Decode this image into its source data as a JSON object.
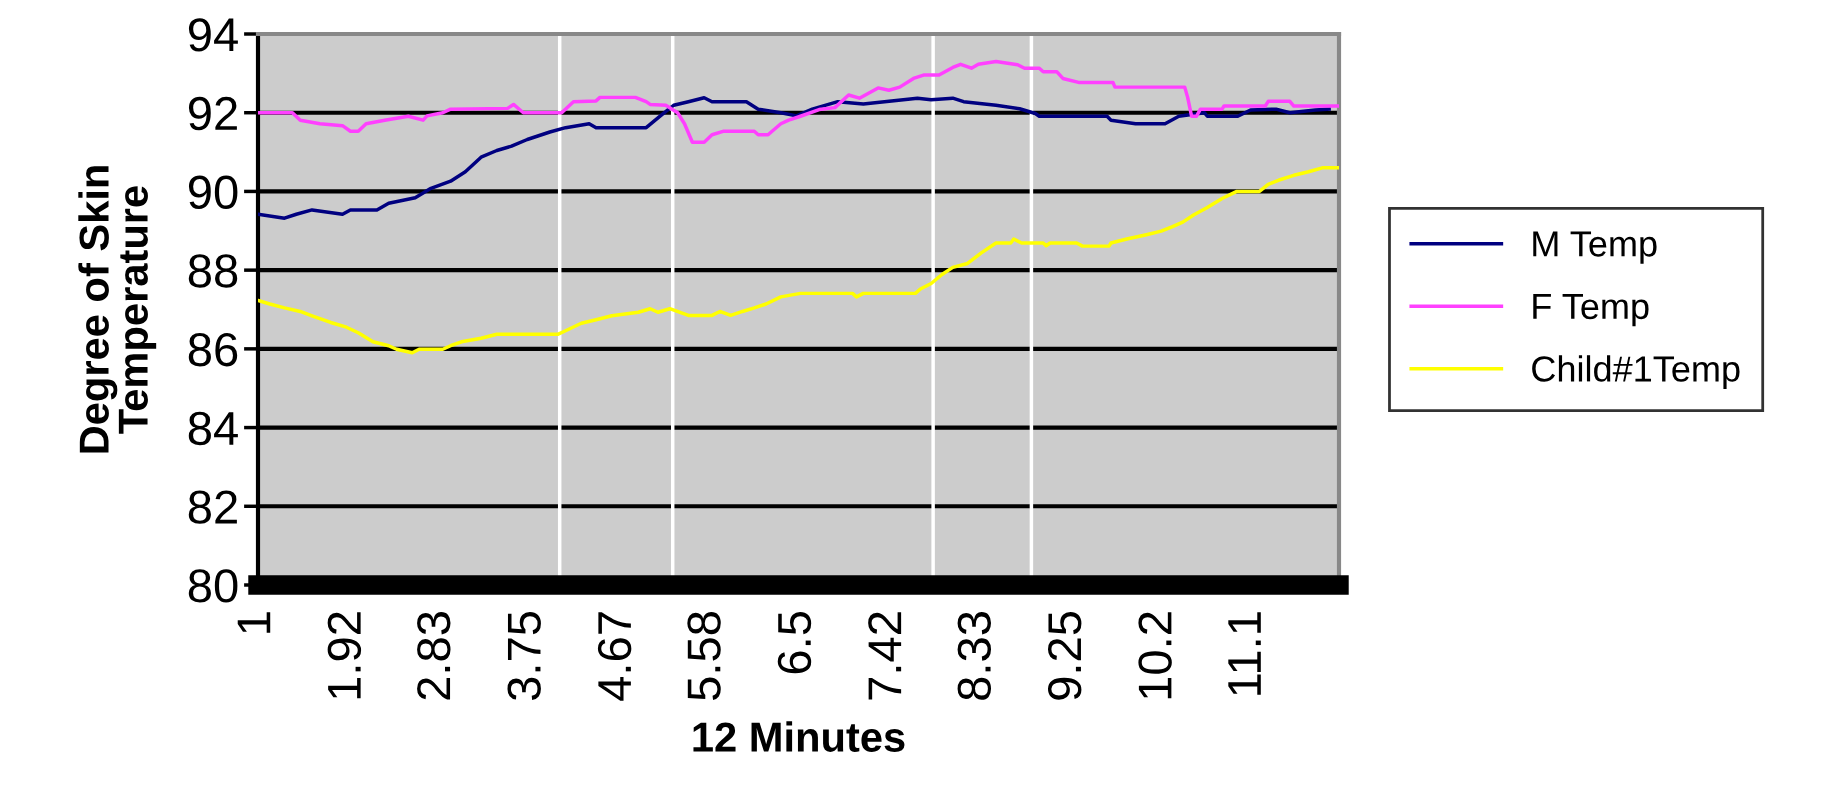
{
  "chart_data": {
    "type": "line",
    "xlabel": "12 Minutes",
    "ylabel": "Degree of Skin\nTemperature",
    "xlim": [
      1,
      12
    ],
    "xticks": [
      1,
      1.92,
      2.83,
      3.75,
      4.67,
      5.58,
      6.5,
      7.42,
      8.33,
      9.25,
      {
        "value": 10.17,
        "label": "10.2"
      },
      {
        "value": 11.08,
        "label": "11.1"
      }
    ],
    "ylim": [
      80,
      94
    ],
    "yticks": [
      80,
      82,
      84,
      86,
      88,
      90,
      92,
      94
    ],
    "grid": "y",
    "legend": "right",
    "marker": "none",
    "line_style": "solid",
    "ref_lines": [
      {
        "axis": "x",
        "value": 4.07,
        "color": "#ffffff"
      },
      {
        "axis": "x",
        "value": 5.22,
        "color": "#ffffff"
      },
      {
        "axis": "x",
        "value": 7.87,
        "color": "#ffffff"
      },
      {
        "axis": "x",
        "value": 8.87,
        "color": "#ffffff"
      }
    ],
    "series": [
      {
        "name": "M Temp",
        "color": "#000080",
        "x": [
          1.0,
          1.27,
          1.39,
          1.55,
          1.86,
          1.94,
          2.21,
          2.33,
          2.6,
          2.76,
          2.96,
          3.11,
          3.27,
          3.43,
          3.58,
          3.74,
          3.97,
          4.13,
          4.37,
          4.44,
          4.95,
          5.11,
          5.23,
          5.38,
          5.54,
          5.62,
          5.97,
          6.09,
          6.32,
          6.48,
          6.64,
          6.9,
          7.16,
          7.71,
          7.85,
          8.07,
          8.18,
          8.51,
          8.75,
          8.91,
          8.95,
          9.64,
          9.68,
          9.93,
          10.23,
          10.37,
          10.63,
          10.66,
          10.97,
          11.1,
          11.36,
          11.5,
          11.76,
          11.9
        ],
        "values": [
          89.42,
          89.32,
          89.42,
          89.53,
          89.42,
          89.53,
          89.53,
          89.7,
          89.84,
          90.08,
          90.26,
          90.5,
          90.87,
          91.04,
          91.15,
          91.32,
          91.51,
          91.62,
          91.72,
          91.62,
          91.62,
          91.95,
          92.19,
          92.28,
          92.38,
          92.28,
          92.28,
          92.09,
          92.0,
          91.92,
          92.09,
          92.28,
          92.22,
          92.37,
          92.33,
          92.37,
          92.28,
          92.19,
          92.1,
          91.98,
          91.91,
          91.91,
          91.81,
          91.72,
          91.72,
          91.91,
          92.0,
          91.91,
          91.91,
          92.07,
          92.09,
          92.0,
          92.07,
          92.09
        ]
      },
      {
        "name": "F Temp",
        "color": "#ff40ff",
        "x": [
          1.0,
          1.35,
          1.43,
          1.63,
          1.86,
          1.94,
          2.02,
          2.1,
          2.29,
          2.53,
          2.68,
          2.72,
          2.88,
          2.96,
          3.54,
          3.6,
          3.7,
          4.09,
          4.21,
          4.44,
          4.48,
          4.84,
          4.95,
          4.99,
          5.15,
          5.27,
          5.34,
          5.42,
          5.54,
          5.62,
          5.74,
          6.05,
          6.09,
          6.19,
          6.32,
          6.4,
          6.52,
          6.71,
          6.87,
          7.01,
          7.12,
          7.31,
          7.42,
          7.53,
          7.67,
          7.78,
          7.93,
          8.07,
          8.15,
          8.26,
          8.33,
          8.51,
          8.73,
          8.8,
          8.95,
          8.99,
          9.13,
          9.19,
          9.35,
          9.7,
          9.72,
          10.15,
          10.43,
          10.46,
          10.5,
          10.55,
          10.59,
          10.81,
          10.83,
          11.25,
          11.28,
          11.5,
          11.54,
          12.0
        ],
        "values": [
          92.0,
          92.0,
          91.81,
          91.72,
          91.67,
          91.53,
          91.53,
          91.72,
          91.81,
          91.91,
          91.81,
          91.92,
          92.0,
          92.09,
          92.11,
          92.21,
          92.0,
          92.0,
          92.28,
          92.3,
          92.39,
          92.39,
          92.28,
          92.21,
          92.19,
          92.0,
          91.72,
          91.25,
          91.25,
          91.44,
          91.53,
          91.53,
          91.44,
          91.44,
          91.72,
          91.81,
          91.91,
          92.08,
          92.13,
          92.45,
          92.37,
          92.63,
          92.57,
          92.65,
          92.87,
          92.96,
          92.96,
          93.15,
          93.23,
          93.13,
          93.23,
          93.3,
          93.22,
          93.13,
          93.13,
          93.04,
          93.04,
          92.87,
          92.77,
          92.77,
          92.65,
          92.65,
          92.65,
          92.39,
          91.91,
          91.91,
          92.09,
          92.09,
          92.17,
          92.17,
          92.29,
          92.29,
          92.17,
          92.17
        ]
      },
      {
        "name": "Child#1Temp",
        "color": "#ffff00",
        "x": [
          1.0,
          1.12,
          1.27,
          1.43,
          1.55,
          1.74,
          1.9,
          2.02,
          2.17,
          2.33,
          2.41,
          2.57,
          2.64,
          2.88,
          2.96,
          3.07,
          3.27,
          3.43,
          4.05,
          4.13,
          4.29,
          4.44,
          4.6,
          4.87,
          4.99,
          5.07,
          5.19,
          5.38,
          5.62,
          5.7,
          5.81,
          5.93,
          6.05,
          6.17,
          6.32,
          6.52,
          7.05,
          7.09,
          7.16,
          7.69,
          7.74,
          7.85,
          7.96,
          8.07,
          8.22,
          8.36,
          8.51,
          8.66,
          8.69,
          8.77,
          8.99,
          9.02,
          9.06,
          9.33,
          9.39,
          9.66,
          9.68,
          9.84,
          10.04,
          10.19,
          10.3,
          10.41,
          10.52,
          10.66,
          10.81,
          10.96,
          11.19,
          11.28,
          11.39,
          11.54,
          11.69,
          11.83,
          12.0
        ],
        "values": [
          87.23,
          87.14,
          87.04,
          86.95,
          86.84,
          86.67,
          86.55,
          86.41,
          86.18,
          86.08,
          85.99,
          85.9,
          85.99,
          85.99,
          86.08,
          86.18,
          86.27,
          86.37,
          86.37,
          86.46,
          86.65,
          86.74,
          86.84,
          86.93,
          87.02,
          86.93,
          87.02,
          86.85,
          86.85,
          86.95,
          86.85,
          86.95,
          87.04,
          87.14,
          87.32,
          87.41,
          87.41,
          87.32,
          87.41,
          87.41,
          87.52,
          87.66,
          87.89,
          88.07,
          88.17,
          88.44,
          88.69,
          88.69,
          88.79,
          88.69,
          88.69,
          88.62,
          88.69,
          88.69,
          88.61,
          88.61,
          88.69,
          88.79,
          88.9,
          88.99,
          89.1,
          89.22,
          89.4,
          89.59,
          89.82,
          90.0,
          90.0,
          90.18,
          90.29,
          90.41,
          90.5,
          90.6,
          90.6
        ]
      }
    ]
  }
}
